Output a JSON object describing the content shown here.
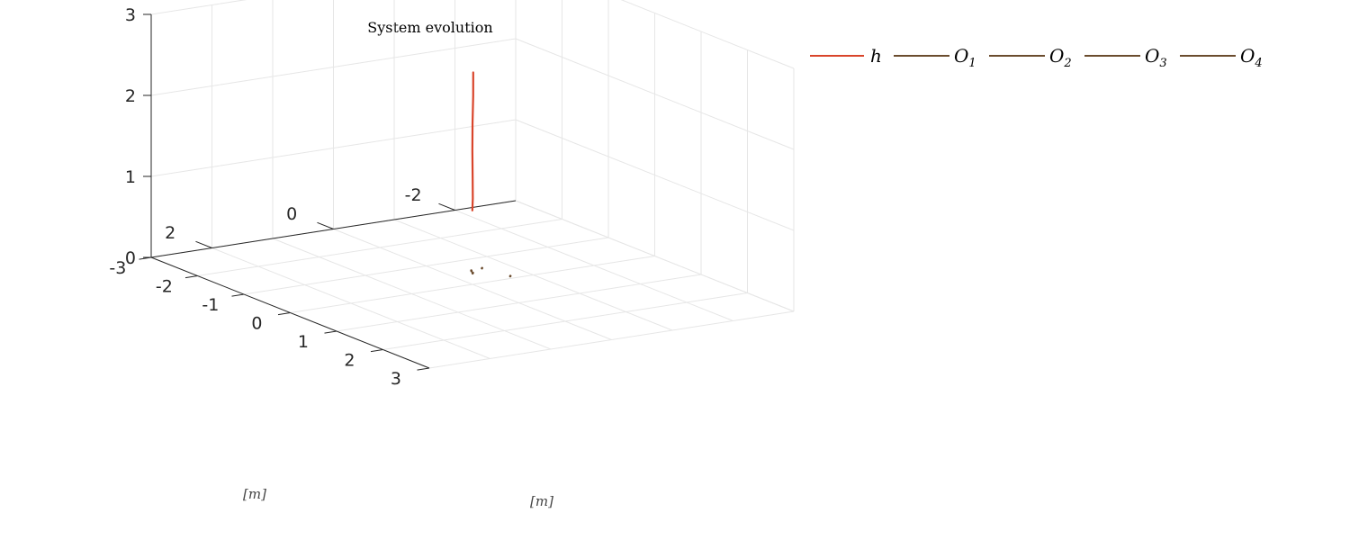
{
  "chart_data": {
    "type": "line",
    "projection": "3d",
    "title": "System evolution",
    "xlabel": "[m]",
    "ylabel": "[m]",
    "zlabel": "",
    "xlim": [
      -3,
      3
    ],
    "ylim": [
      -3,
      3
    ],
    "zlim": [
      0,
      3
    ],
    "xticks": [
      "-3",
      "-2",
      "-1",
      "0",
      "1",
      "2",
      "3"
    ],
    "yticks": [
      "-2",
      "0",
      "2"
    ],
    "zticks": [
      "0",
      "1",
      "2",
      "3"
    ],
    "grid": true,
    "legend_placement": "top-right",
    "series": [
      {
        "name": "h",
        "color": "#d9452b",
        "points": [
          [
            -0.05,
            -0.05,
            2.6
          ],
          [
            -0.09,
            -0.08,
            2.3
          ],
          [
            -0.13,
            -0.1,
            1.95
          ],
          [
            -0.16,
            -0.12,
            1.6
          ],
          [
            -0.18,
            -0.14,
            1.25
          ],
          [
            -0.19,
            -0.15,
            1.0
          ],
          [
            -0.2,
            -0.15,
            0.85
          ]
        ]
      },
      {
        "name": "O",
        "sub": "1",
        "color": "#6b4c2e",
        "points": [
          [
            -0.55,
            -0.4,
            0
          ],
          [
            -0.52,
            -0.38,
            0
          ]
        ]
      },
      {
        "name": "O",
        "sub": "2",
        "color": "#6b4c2e",
        "points": [
          [
            -0.45,
            -0.35,
            0
          ],
          [
            -0.43,
            -0.33,
            0
          ]
        ]
      },
      {
        "name": "O",
        "sub": "3",
        "color": "#6b4c2e",
        "points": [
          [
            -0.58,
            -0.6,
            0
          ],
          [
            -0.57,
            -0.59,
            0
          ]
        ]
      },
      {
        "name": "O",
        "sub": "4",
        "color": "#6b4c2e",
        "points": [
          [
            -0.1,
            -0.7,
            0
          ],
          [
            -0.09,
            -0.69,
            0
          ]
        ]
      }
    ]
  }
}
